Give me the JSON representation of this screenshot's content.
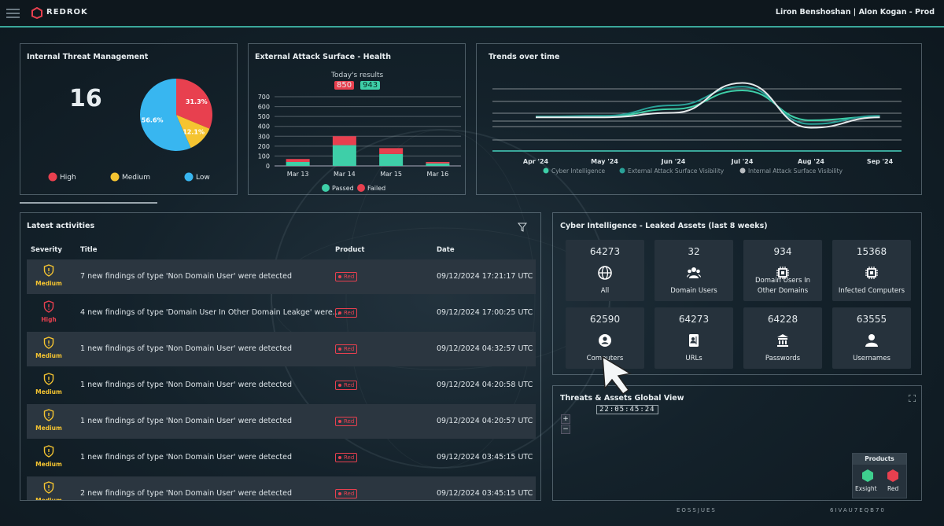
{
  "header": {
    "brand": "REDROK",
    "user": "Liron Benshoshan | Alon Kogan - Prod"
  },
  "internal_threat": {
    "title": "Internal Threat Management",
    "count": 16,
    "chart_data": {
      "type": "pie",
      "categories": [
        "High",
        "Medium",
        "Low"
      ],
      "values": [
        31.3,
        12.1,
        56.6
      ],
      "value_labels": [
        "31.3%",
        "12.1%",
        "56.6%"
      ],
      "colors": [
        "#e8404f",
        "#f5c431",
        "#38b6f0"
      ]
    }
  },
  "external": {
    "title": "External Attack Surface - Health",
    "subtitle": "Today's results",
    "failed_today": 850,
    "passed_today": 943,
    "chart_data": {
      "type": "bar",
      "stacked": true,
      "categories": [
        "Mar 13",
        "Mar 14",
        "Mar 15",
        "Mar 16"
      ],
      "series": [
        {
          "name": "Passed",
          "color": "#3ecfa8",
          "values": [
            40,
            210,
            120,
            25
          ]
        },
        {
          "name": "Failed",
          "color": "#e8404f",
          "values": [
            30,
            90,
            60,
            15
          ]
        }
      ],
      "ylim": [
        0,
        700
      ],
      "yticks": [
        0,
        100,
        200,
        300,
        400,
        500,
        600,
        700
      ],
      "grid": true
    }
  },
  "trends": {
    "title": "Trends over time",
    "chart_data": {
      "type": "line",
      "categories": [
        "Apr '24",
        "May '24",
        "Jun '24",
        "Jul '24",
        "Aug '24",
        "Sep '24"
      ],
      "series": [
        {
          "name": "Cyber Intelligence",
          "color": "#3ecfa8",
          "values": [
            45,
            45,
            55,
            80,
            40,
            45
          ]
        },
        {
          "name": "External Attack Surface Visibility",
          "color": "#2aa198",
          "values": [
            45,
            46,
            60,
            85,
            35,
            46
          ]
        },
        {
          "name": "Internal Attack Surface Visibility",
          "color": "#b8bcc0",
          "values": [
            44,
            44,
            50,
            90,
            30,
            44
          ]
        }
      ],
      "ylim": [
        0,
        100
      ]
    }
  },
  "activities": {
    "title": "Latest activities",
    "columns": [
      "Severity",
      "Title",
      "Product",
      "Date"
    ],
    "rows": [
      {
        "severity": "Medium",
        "title": "7 new findings of type 'Non Domain User' were detected",
        "product": "Red",
        "date": "09/12/2024 17:21:17 UTC"
      },
      {
        "severity": "High",
        "title": "4 new findings of type 'Domain User In Other Domain Leakge' were...",
        "product": "Red",
        "date": "09/12/2024 17:00:25 UTC"
      },
      {
        "severity": "Medium",
        "title": "1 new findings of type 'Non Domain User' were detected",
        "product": "Red",
        "date": "09/12/2024 04:32:57 UTC"
      },
      {
        "severity": "Medium",
        "title": "1 new findings of type 'Non Domain User' were detected",
        "product": "Red",
        "date": "09/12/2024 04:20:58 UTC"
      },
      {
        "severity": "Medium",
        "title": "1 new findings of type 'Non Domain User' were detected",
        "product": "Red",
        "date": "09/12/2024 04:20:57 UTC"
      },
      {
        "severity": "Medium",
        "title": "1 new findings of type 'Non Domain User' were detected",
        "product": "Red",
        "date": "09/12/2024 03:45:15 UTC"
      },
      {
        "severity": "Medium",
        "title": "2 new findings of type 'Non Domain User' were detected",
        "product": "Red",
        "date": "09/12/2024 03:45:15 UTC"
      }
    ]
  },
  "leaked": {
    "title": "Cyber Intelligence - Leaked Assets (last 8 weeks)",
    "tiles": [
      {
        "value": 64273,
        "label": "All"
      },
      {
        "value": 32,
        "label": "Domain Users"
      },
      {
        "value": 934,
        "label": "Domain Users In Other Domains"
      },
      {
        "value": 15368,
        "label": "Infected Computers"
      },
      {
        "value": 62590,
        "label": "Computers"
      },
      {
        "value": 64273,
        "label": "URLs"
      },
      {
        "value": 64228,
        "label": "Passwords"
      },
      {
        "value": 63555,
        "label": "Usernames"
      }
    ]
  },
  "global": {
    "title": "Threats & Assets Global View",
    "clock": "22:05:45:24",
    "zoom_in": "+",
    "zoom_out": "−",
    "products": {
      "title": "Products",
      "items": [
        "Exsight",
        "Red"
      ]
    },
    "footer_codes": [
      "EOSSJUES",
      "6IVAU7EQB70"
    ]
  }
}
